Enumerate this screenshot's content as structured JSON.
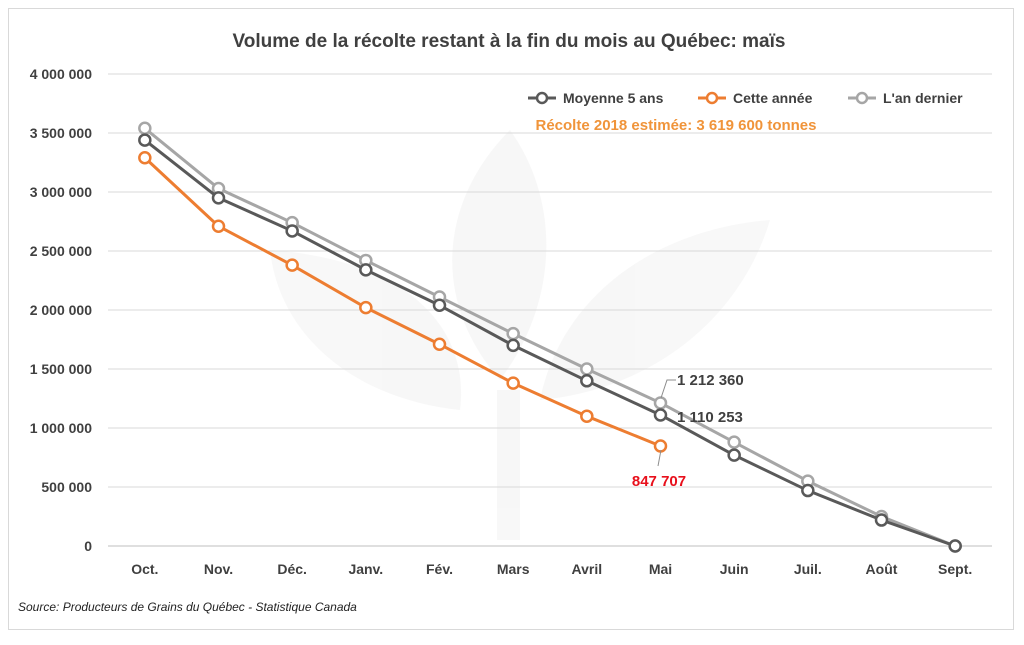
{
  "chart_data": {
    "type": "line",
    "title": "Volume de la récolte restant à la fin du mois au Québec: maïs",
    "categories": [
      "Oct.",
      "Nov.",
      "Déc.",
      "Janv.",
      "Fév.",
      "Mars",
      "Avril",
      "Mai",
      "Juin",
      "Juil.",
      "Août",
      "Sept."
    ],
    "y_ticks": [
      "0",
      "500 000",
      "1 000 000",
      "1 500 000",
      "2 000 000",
      "2 500 000",
      "3 000 000",
      "3 500 000",
      "4 000 000"
    ],
    "ylim": [
      0,
      4000000
    ],
    "grid": true,
    "legend_position": "top-right",
    "series": [
      {
        "name": "Moyenne 5 ans",
        "color": "#595959",
        "values": [
          3440000,
          2950000,
          2670000,
          2340000,
          2040000,
          1700000,
          1400000,
          1110253,
          770000,
          470000,
          220000,
          0
        ]
      },
      {
        "name": "Cette année",
        "color": "#ed7d31",
        "values": [
          3290000,
          2710000,
          2380000,
          2020000,
          1710000,
          1380000,
          1100000,
          847707,
          null,
          null,
          null,
          null
        ]
      },
      {
        "name": "L'an dernier",
        "color": "#a6a6a6",
        "values": [
          3540000,
          3030000,
          2740000,
          2420000,
          2110000,
          1800000,
          1500000,
          1212360,
          880000,
          550000,
          250000,
          0
        ]
      }
    ],
    "annotations": {
      "estimate": "Récolte 2018 estimée: 3 619 600 tonnes",
      "label_last_year": "1 212 360",
      "label_avg": "1 110 253",
      "label_this_year": "847 707"
    },
    "source": "Source: Producteurs de Grains du Québec - Statistique Canada"
  }
}
